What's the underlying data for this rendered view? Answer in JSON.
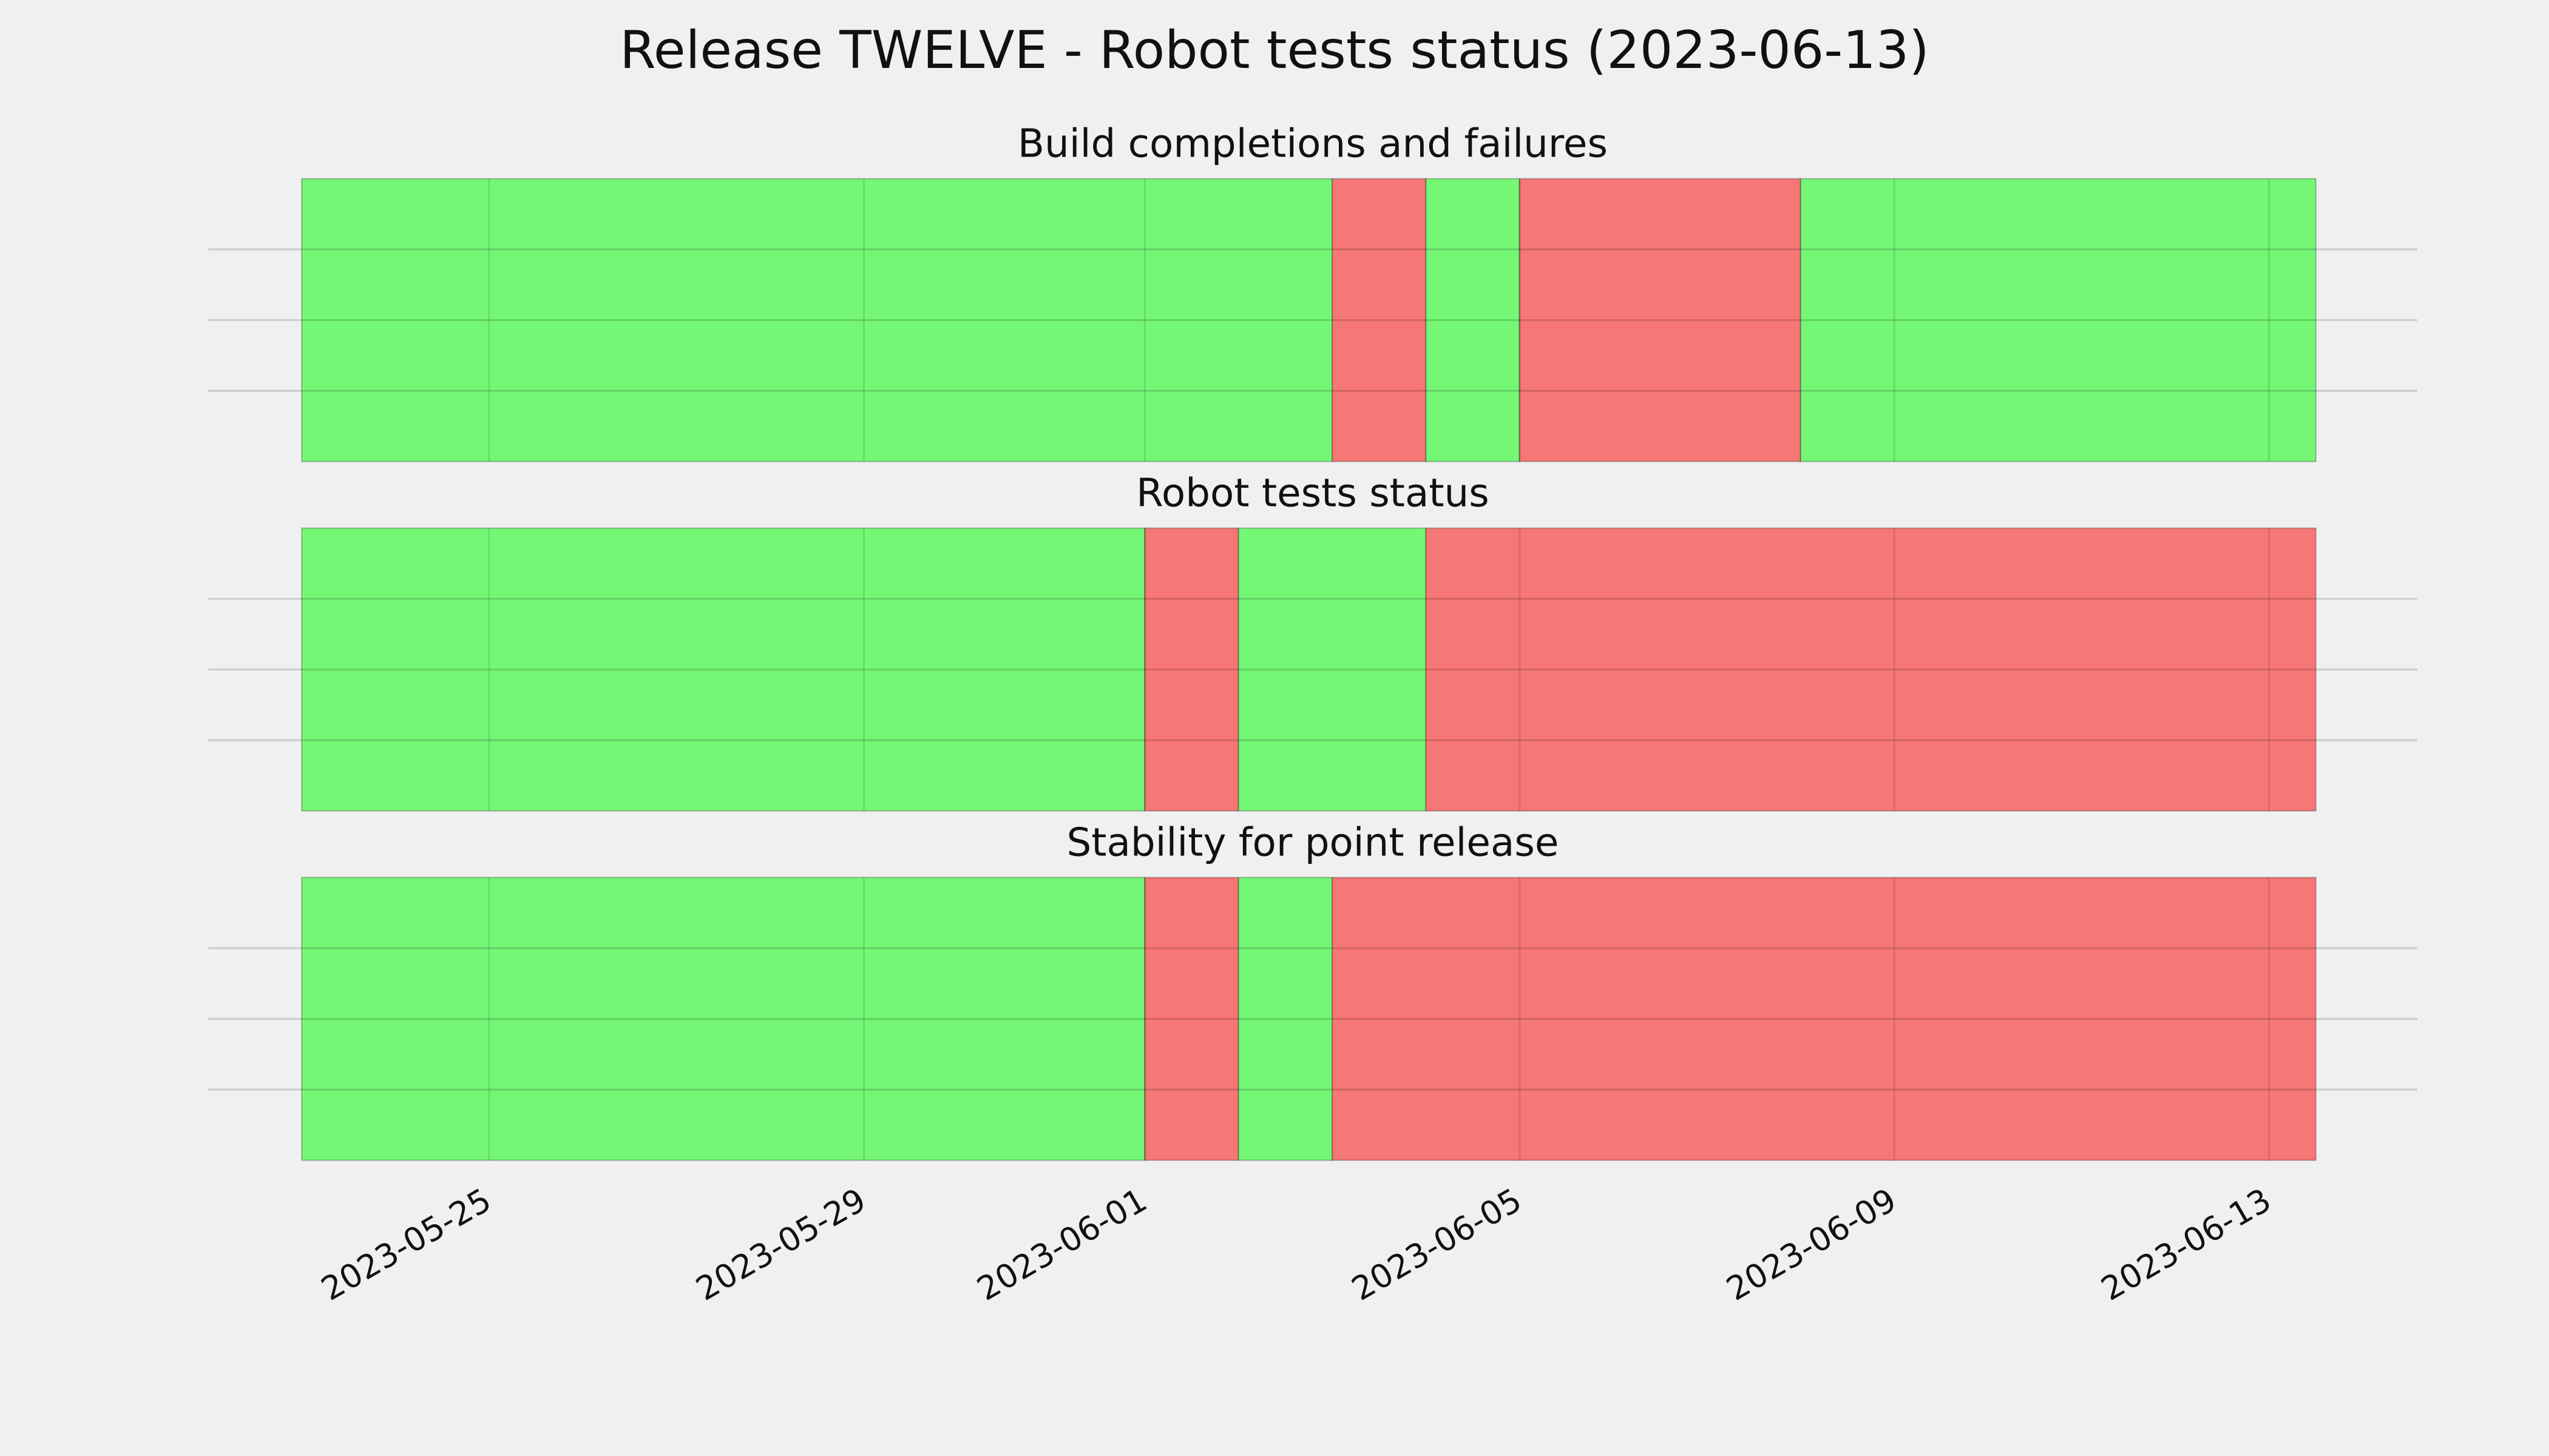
{
  "chart_data": [
    {
      "type": "timeline",
      "suptitle": "Release TWELVE - Robot tests status (2023-06-13)",
      "title": "Build completions and failures",
      "xlim": [
        "2023-05-22T00:00:00Z",
        "2023-06-14T14:00:00Z"
      ],
      "ylim": [
        0,
        1
      ],
      "yticks": [
        0.25,
        0.5,
        0.75
      ],
      "grid": true,
      "spans": [
        {
          "start": "2023-05-23T00:00:00Z",
          "end": "2023-06-03T00:00:00Z",
          "color": "#75f776"
        },
        {
          "start": "2023-06-03T00:00:00Z",
          "end": "2023-06-04T00:00:00Z",
          "color": "#f77676"
        },
        {
          "start": "2023-06-04T00:00:00Z",
          "end": "2023-06-05T00:00:00Z",
          "color": "#75f776"
        },
        {
          "start": "2023-06-05T00:00:00Z",
          "end": "2023-06-08T00:00:00Z",
          "color": "#f77676"
        },
        {
          "start": "2023-06-08T00:00:00Z",
          "end": "2023-06-13T12:00:00Z",
          "color": "#75f776"
        }
      ]
    },
    {
      "type": "timeline",
      "title": "Robot tests status",
      "xlim": [
        "2023-05-22T00:00:00Z",
        "2023-06-14T14:00:00Z"
      ],
      "ylim": [
        0,
        1
      ],
      "yticks": [
        0.25,
        0.5,
        0.75
      ],
      "grid": true,
      "spans": [
        {
          "start": "2023-05-23T00:00:00Z",
          "end": "2023-06-01T00:00:00Z",
          "color": "#75f776"
        },
        {
          "start": "2023-06-01T00:00:00Z",
          "end": "2023-06-02T00:00:00Z",
          "color": "#f77676"
        },
        {
          "start": "2023-06-02T00:00:00Z",
          "end": "2023-06-04T00:00:00Z",
          "color": "#75f776"
        },
        {
          "start": "2023-06-04T00:00:00Z",
          "end": "2023-06-13T12:00:00Z",
          "color": "#f77676"
        }
      ]
    },
    {
      "type": "timeline",
      "title": "Stability for point release",
      "xlim": [
        "2023-05-22T00:00:00Z",
        "2023-06-14T14:00:00Z"
      ],
      "ylim": [
        0,
        1
      ],
      "yticks": [
        0.25,
        0.5,
        0.75
      ],
      "grid": true,
      "xticks": [
        "2023-05-25",
        "2023-05-29",
        "2023-06-01",
        "2023-06-05",
        "2023-06-09",
        "2023-06-13"
      ],
      "spans": [
        {
          "start": "2023-05-23T00:00:00Z",
          "end": "2023-06-01T00:00:00Z",
          "color": "#75f776"
        },
        {
          "start": "2023-06-01T00:00:00Z",
          "end": "2023-06-02T00:00:00Z",
          "color": "#f77676"
        },
        {
          "start": "2023-06-02T00:00:00Z",
          "end": "2023-06-03T00:00:00Z",
          "color": "#75f776"
        },
        {
          "start": "2023-06-03T00:00:00Z",
          "end": "2023-06-13T12:00:00Z",
          "color": "#f77676"
        }
      ]
    }
  ]
}
